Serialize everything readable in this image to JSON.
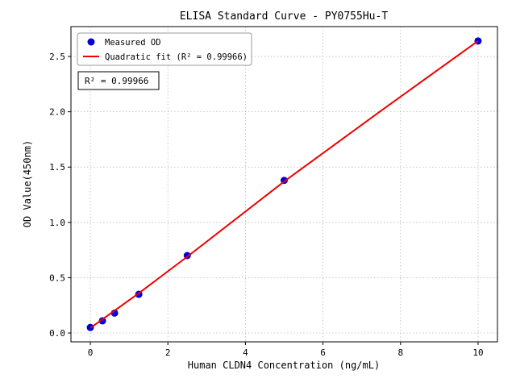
{
  "chart_data": {
    "type": "scatter",
    "title": "ELISA Standard Curve - PY0755Hu-T",
    "xlabel": "Human CLDN4 Concentration (ng/mL)",
    "ylabel": "OD Value(450nm)",
    "xlim": [
      -0.5,
      10.5
    ],
    "ylim": [
      -0.08,
      2.77
    ],
    "xticks": [
      0,
      2,
      4,
      6,
      8,
      10
    ],
    "yticks": [
      0,
      0.5,
      1,
      1.5,
      2,
      2.5
    ],
    "grid": true,
    "legend_position": "upper left",
    "annotation": "R² = 0.99966",
    "r_squared": "0.99966",
    "colors": {
      "points": "#0000dd",
      "fit_line": "#ee0000"
    },
    "series": [
      {
        "name": "Measured OD",
        "type": "scatter",
        "color": "#0000dd",
        "x": [
          0,
          0.312,
          0.625,
          1.25,
          2.5,
          5,
          10
        ],
        "y": [
          0.05,
          0.11,
          0.18,
          0.35,
          0.7,
          1.38,
          2.64
        ]
      },
      {
        "name": "Quadratic fit (R² = 0.99966)",
        "type": "line",
        "color": "#ee0000",
        "x": [
          0,
          1.25,
          2.5,
          5,
          7.5,
          10
        ],
        "y": [
          0.045,
          0.36,
          0.69,
          1.37,
          2.01,
          2.64
        ]
      }
    ]
  }
}
